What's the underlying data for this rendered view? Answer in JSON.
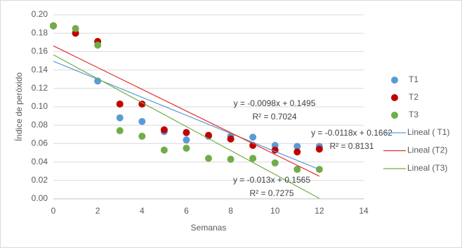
{
  "chart_data": {
    "type": "scatter",
    "x_label": "Semanas",
    "y_label": "Índice de peróxido",
    "x": [
      0,
      1,
      2,
      3,
      4,
      5,
      6,
      7,
      8,
      9,
      10,
      11,
      12
    ],
    "series": [
      {
        "name": "T1",
        "color": "#5b9bd5",
        "values": [
          0.188,
          0.18,
          0.128,
          0.088,
          0.084,
          0.073,
          0.064,
          0.068,
          0.068,
          0.067,
          0.058,
          0.057,
          0.057
        ]
      },
      {
        "name": "T2",
        "color": "#c00000",
        "values": [
          0.188,
          0.18,
          0.171,
          0.103,
          0.103,
          0.075,
          0.072,
          0.069,
          0.065,
          0.058,
          0.053,
          0.051,
          0.054
        ]
      },
      {
        "name": "T3",
        "color": "#70ad47",
        "values": [
          0.188,
          0.185,
          0.167,
          0.074,
          0.068,
          0.053,
          0.055,
          0.044,
          0.043,
          0.044,
          0.039,
          0.032,
          0.032
        ]
      }
    ],
    "trendlines": [
      {
        "name": "Lineal ( T1)",
        "color": "#5b9bd5",
        "slope": -0.0098,
        "intercept": 0.1495,
        "equation": "y = -0.0098x + 0.1495",
        "r2": "R² = 0.7024"
      },
      {
        "name": "Lineal (T2)",
        "color": "#e0302a",
        "slope": -0.0118,
        "intercept": 0.1662,
        "equation": "y = -0.0118x + 0.1662",
        "r2": "R² = 0.8131"
      },
      {
        "name": "Lineal (T3)",
        "color": "#70ad47",
        "slope": -0.013,
        "intercept": 0.1565,
        "equation": "y = -0.013x + 0.1565",
        "r2": "R² = 0.7275"
      }
    ],
    "xlim": [
      0,
      14
    ],
    "xticks": [
      0,
      2,
      4,
      6,
      8,
      10,
      12,
      14
    ],
    "ylim": [
      0,
      0.2
    ],
    "yticks": [
      {
        "value": 0,
        "label": "0.00"
      },
      {
        "value": 0.02,
        "label": "0.02"
      },
      {
        "value": 0.04,
        "label": "0.04"
      },
      {
        "value": 0.06,
        "label": "0.06"
      },
      {
        "value": 0.08,
        "label": "0.08"
      },
      {
        "value": 0.1,
        "label": "0.10"
      },
      {
        "value": 0.12,
        "label": "0.12"
      },
      {
        "value": 0.14,
        "label": "0.14"
      },
      {
        "value": 0.16,
        "label": "0.16"
      },
      {
        "value": 0.18,
        "label": "0.18"
      },
      {
        "value": 0.2,
        "label": "0.20"
      }
    ],
    "grid": true
  }
}
